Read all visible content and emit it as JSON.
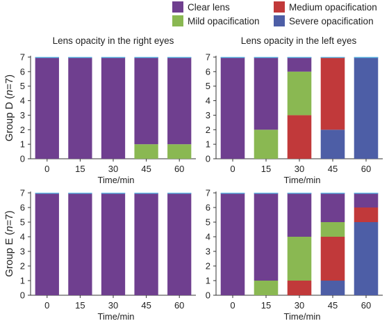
{
  "colors": {
    "clear": "#6f3f8f",
    "mild": "#8ab852",
    "medium": "#c1393a",
    "severe": "#4d5ea6",
    "top_line": "#5fb8e3"
  },
  "legend": {
    "clear": "Clear lens",
    "mild": "Mild opacification",
    "medium": "Medium opacification",
    "severe": "Severe opacification"
  },
  "row_labels": {
    "d": {
      "prefix": "Group D (",
      "n": "n",
      "suffix": "=7)"
    },
    "e": {
      "prefix": "Group E (",
      "n": "n",
      "suffix": "=7)"
    }
  },
  "chart_data": [
    {
      "type": "bar",
      "stacked": true,
      "title": "Lens opacity in the right eyes",
      "group": "D",
      "xlabel": "Time/min",
      "categories": [
        "0",
        "15",
        "30",
        "45",
        "60"
      ],
      "ylim": [
        0,
        7
      ],
      "yticks": [
        "0",
        "1",
        "2",
        "3",
        "4",
        "5",
        "6",
        "7"
      ],
      "series": [
        {
          "key": "severe",
          "values": [
            0,
            0,
            0,
            0,
            0
          ]
        },
        {
          "key": "medium",
          "values": [
            0,
            0,
            0,
            0,
            0
          ]
        },
        {
          "key": "mild",
          "values": [
            0,
            0,
            0,
            1,
            1
          ]
        },
        {
          "key": "clear",
          "values": [
            7,
            7,
            7,
            6,
            6
          ]
        }
      ]
    },
    {
      "type": "bar",
      "stacked": true,
      "title": "Lens opacity in the left eyes",
      "group": "D",
      "xlabel": "Time/min",
      "categories": [
        "0",
        "15",
        "30",
        "45",
        "60"
      ],
      "ylim": [
        0,
        7
      ],
      "yticks": [
        "0",
        "1",
        "2",
        "3",
        "4",
        "5",
        "6",
        "7"
      ],
      "series": [
        {
          "key": "severe",
          "values": [
            0,
            0,
            0,
            2,
            7
          ]
        },
        {
          "key": "medium",
          "values": [
            0,
            0,
            3,
            5,
            0
          ]
        },
        {
          "key": "mild",
          "values": [
            0,
            2,
            3,
            0,
            0
          ]
        },
        {
          "key": "clear",
          "values": [
            7,
            5,
            1,
            0,
            0
          ]
        }
      ]
    },
    {
      "type": "bar",
      "stacked": true,
      "title": "",
      "group": "E",
      "xlabel": "Time/min",
      "categories": [
        "0",
        "15",
        "30",
        "45",
        "60"
      ],
      "ylim": [
        0,
        7
      ],
      "yticks": [
        "0",
        "1",
        "2",
        "3",
        "4",
        "5",
        "6",
        "7"
      ],
      "series": [
        {
          "key": "severe",
          "values": [
            0,
            0,
            0,
            0,
            0
          ]
        },
        {
          "key": "medium",
          "values": [
            0,
            0,
            0,
            0,
            0
          ]
        },
        {
          "key": "mild",
          "values": [
            0,
            0,
            0,
            0,
            0
          ]
        },
        {
          "key": "clear",
          "values": [
            7,
            7,
            7,
            7,
            7
          ]
        }
      ]
    },
    {
      "type": "bar",
      "stacked": true,
      "title": "",
      "group": "E",
      "xlabel": "Time/min",
      "categories": [
        "0",
        "15",
        "30",
        "45",
        "60"
      ],
      "ylim": [
        0,
        7
      ],
      "yticks": [
        "0",
        "1",
        "2",
        "3",
        "4",
        "5",
        "6",
        "7"
      ],
      "series": [
        {
          "key": "severe",
          "values": [
            0,
            0,
            0,
            1,
            5
          ]
        },
        {
          "key": "medium",
          "values": [
            0,
            0,
            1,
            3,
            1
          ]
        },
        {
          "key": "mild",
          "values": [
            0,
            1,
            3,
            1,
            0
          ]
        },
        {
          "key": "clear",
          "values": [
            7,
            6,
            3,
            2,
            1
          ]
        }
      ]
    }
  ]
}
